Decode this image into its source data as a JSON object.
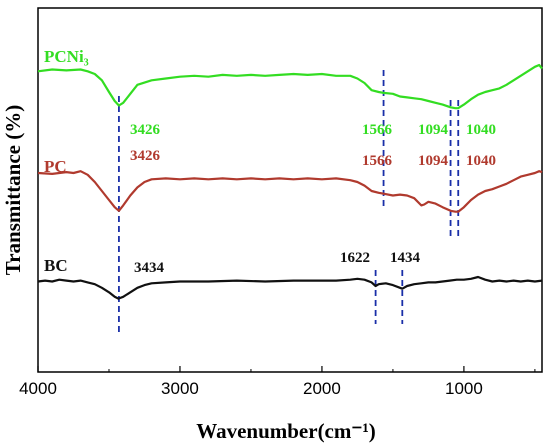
{
  "chart_data": {
    "type": "line",
    "title": "",
    "xlabel": "Wavenumber(cm⁻¹)",
    "ylabel": "Transmittance (%)",
    "xlim": [
      4000,
      450
    ],
    "x_reversed": true,
    "x_ticks": [
      4000,
      3000,
      2000,
      1000
    ],
    "grid": false,
    "y_ticks": false,
    "series": [
      {
        "name": "PCNi₃",
        "color": "#33dd22",
        "points": [
          [
            4000,
            0.43
          ],
          [
            3900,
            0.45
          ],
          [
            3800,
            0.44
          ],
          [
            3700,
            0.45
          ],
          [
            3650,
            0.43
          ],
          [
            3600,
            0.4
          ],
          [
            3550,
            0.33
          ],
          [
            3500,
            0.2
          ],
          [
            3460,
            0.1
          ],
          [
            3430,
            0.05
          ],
          [
            3400,
            0.08
          ],
          [
            3350,
            0.18
          ],
          [
            3300,
            0.28
          ],
          [
            3200,
            0.33
          ],
          [
            3100,
            0.35
          ],
          [
            3000,
            0.37
          ],
          [
            2900,
            0.38
          ],
          [
            2800,
            0.37
          ],
          [
            2700,
            0.39
          ],
          [
            2600,
            0.38
          ],
          [
            2500,
            0.39
          ],
          [
            2400,
            0.38
          ],
          [
            2300,
            0.39
          ],
          [
            2200,
            0.4
          ],
          [
            2100,
            0.39
          ],
          [
            2000,
            0.4
          ],
          [
            1900,
            0.38
          ],
          [
            1800,
            0.38
          ],
          [
            1750,
            0.35
          ],
          [
            1700,
            0.3
          ],
          [
            1650,
            0.22
          ],
          [
            1600,
            0.2
          ],
          [
            1566,
            0.19
          ],
          [
            1500,
            0.18
          ],
          [
            1450,
            0.15
          ],
          [
            1400,
            0.14
          ],
          [
            1350,
            0.13
          ],
          [
            1300,
            0.12
          ],
          [
            1250,
            0.1
          ],
          [
            1200,
            0.08
          ],
          [
            1150,
            0.06
          ],
          [
            1094,
            0.03
          ],
          [
            1060,
            0.02
          ],
          [
            1040,
            0.02
          ],
          [
            1000,
            0.06
          ],
          [
            950,
            0.12
          ],
          [
            900,
            0.17
          ],
          [
            850,
            0.2
          ],
          [
            800,
            0.22
          ],
          [
            750,
            0.24
          ],
          [
            700,
            0.28
          ],
          [
            650,
            0.33
          ],
          [
            600,
            0.38
          ],
          [
            550,
            0.43
          ],
          [
            500,
            0.48
          ],
          [
            470,
            0.5
          ],
          [
            450,
            0.46
          ]
        ]
      },
      {
        "name": "PC",
        "color": "#b03a2e",
        "points": [
          [
            4000,
            0.3
          ],
          [
            3900,
            0.29
          ],
          [
            3800,
            0.31
          ],
          [
            3750,
            0.3
          ],
          [
            3700,
            0.32
          ],
          [
            3650,
            0.28
          ],
          [
            3600,
            0.2
          ],
          [
            3550,
            0.1
          ],
          [
            3500,
            0.0
          ],
          [
            3460,
            -0.08
          ],
          [
            3430,
            -0.12
          ],
          [
            3400,
            -0.06
          ],
          [
            3350,
            0.05
          ],
          [
            3300,
            0.14
          ],
          [
            3250,
            0.2
          ],
          [
            3200,
            0.23
          ],
          [
            3100,
            0.24
          ],
          [
            3000,
            0.23
          ],
          [
            2900,
            0.24
          ],
          [
            2800,
            0.23
          ],
          [
            2700,
            0.24
          ],
          [
            2600,
            0.23
          ],
          [
            2500,
            0.24
          ],
          [
            2400,
            0.23
          ],
          [
            2300,
            0.24
          ],
          [
            2200,
            0.23
          ],
          [
            2100,
            0.24
          ],
          [
            2000,
            0.23
          ],
          [
            1900,
            0.24
          ],
          [
            1800,
            0.22
          ],
          [
            1750,
            0.2
          ],
          [
            1700,
            0.16
          ],
          [
            1650,
            0.1
          ],
          [
            1600,
            0.08
          ],
          [
            1566,
            0.07
          ],
          [
            1500,
            0.05
          ],
          [
            1450,
            0.06
          ],
          [
            1400,
            0.05
          ],
          [
            1350,
            0.02
          ],
          [
            1300,
            -0.06
          ],
          [
            1280,
            -0.05
          ],
          [
            1250,
            -0.02
          ],
          [
            1200,
            -0.04
          ],
          [
            1150,
            -0.08
          ],
          [
            1094,
            -0.12
          ],
          [
            1060,
            -0.13
          ],
          [
            1040,
            -0.13
          ],
          [
            1000,
            -0.08
          ],
          [
            950,
            0.0
          ],
          [
            900,
            0.06
          ],
          [
            850,
            0.1
          ],
          [
            800,
            0.12
          ],
          [
            750,
            0.15
          ],
          [
            700,
            0.18
          ],
          [
            650,
            0.22
          ],
          [
            600,
            0.26
          ],
          [
            550,
            0.28
          ],
          [
            500,
            0.3
          ],
          [
            470,
            0.32
          ],
          [
            450,
            0.31
          ]
        ]
      },
      {
        "name": "BC",
        "color": "#111111",
        "points": [
          [
            4000,
            -0.35
          ],
          [
            3950,
            -0.34
          ],
          [
            3900,
            -0.35
          ],
          [
            3850,
            -0.33
          ],
          [
            3800,
            -0.34
          ],
          [
            3750,
            -0.35
          ],
          [
            3700,
            -0.34
          ],
          [
            3650,
            -0.36
          ],
          [
            3600,
            -0.38
          ],
          [
            3550,
            -0.42
          ],
          [
            3500,
            -0.47
          ],
          [
            3460,
            -0.52
          ],
          [
            3434,
            -0.54
          ],
          [
            3400,
            -0.52
          ],
          [
            3350,
            -0.47
          ],
          [
            3300,
            -0.42
          ],
          [
            3250,
            -0.39
          ],
          [
            3200,
            -0.37
          ],
          [
            3100,
            -0.36
          ],
          [
            3000,
            -0.35
          ],
          [
            2800,
            -0.35
          ],
          [
            2600,
            -0.34
          ],
          [
            2400,
            -0.35
          ],
          [
            2200,
            -0.34
          ],
          [
            2000,
            -0.34
          ],
          [
            1900,
            -0.34
          ],
          [
            1800,
            -0.33
          ],
          [
            1750,
            -0.32
          ],
          [
            1700,
            -0.33
          ],
          [
            1650,
            -0.36
          ],
          [
            1622,
            -0.4
          ],
          [
            1600,
            -0.38
          ],
          [
            1550,
            -0.37
          ],
          [
            1500,
            -0.39
          ],
          [
            1450,
            -0.42
          ],
          [
            1434,
            -0.43
          ],
          [
            1400,
            -0.4
          ],
          [
            1350,
            -0.38
          ],
          [
            1300,
            -0.37
          ],
          [
            1250,
            -0.36
          ],
          [
            1200,
            -0.36
          ],
          [
            1150,
            -0.35
          ],
          [
            1100,
            -0.34
          ],
          [
            1050,
            -0.33
          ],
          [
            1000,
            -0.33
          ],
          [
            950,
            -0.32
          ],
          [
            900,
            -0.3
          ],
          [
            850,
            -0.33
          ],
          [
            800,
            -0.35
          ],
          [
            750,
            -0.34
          ],
          [
            700,
            -0.35
          ],
          [
            650,
            -0.34
          ],
          [
            600,
            -0.35
          ],
          [
            550,
            -0.34
          ],
          [
            500,
            -0.35
          ],
          [
            450,
            -0.34
          ]
        ]
      }
    ],
    "annotations": [
      {
        "text": "3426",
        "x": 3426,
        "series": "PCNi₃"
      },
      {
        "text": "1566",
        "x": 1566,
        "series": "PCNi₃"
      },
      {
        "text": "1094",
        "x": 1094,
        "series": "PCNi₃"
      },
      {
        "text": "1040",
        "x": 1040,
        "series": "PCNi₃"
      },
      {
        "text": "3426",
        "x": 3426,
        "series": "PC"
      },
      {
        "text": "1566",
        "x": 1566,
        "series": "PC"
      },
      {
        "text": "1094",
        "x": 1094,
        "series": "PC"
      },
      {
        "text": "1040",
        "x": 1040,
        "series": "PC"
      },
      {
        "text": "3434",
        "x": 3434,
        "series": "BC"
      },
      {
        "text": "1622",
        "x": 1622,
        "series": "BC"
      },
      {
        "text": "1434",
        "x": 1434,
        "series": "BC"
      }
    ],
    "dashed_markers": [
      3430,
      1566,
      1094,
      1040,
      1622,
      1434
    ]
  }
}
